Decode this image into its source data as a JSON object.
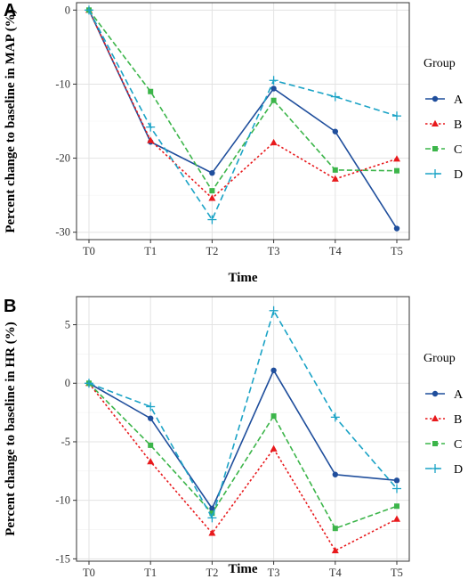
{
  "chart_data": [
    {
      "panel": "A",
      "type": "line",
      "xlabel": "Time",
      "ylabel": "Percent change to baseline in MAP (%)",
      "categories": [
        "T0",
        "T1",
        "T2",
        "T3",
        "T4",
        "T5"
      ],
      "yticks": [
        0,
        -10,
        -20,
        -30
      ],
      "ylim": [
        -31,
        1
      ],
      "grid": true,
      "legend": {
        "title": "Group",
        "position": "right"
      },
      "series": [
        {
          "name": "A",
          "color": "#1f4e9c",
          "marker": "circle",
          "dash": "solid",
          "values": [
            0,
            -17.8,
            -22.0,
            -10.6,
            -16.4,
            -29.5
          ]
        },
        {
          "name": "B",
          "color": "#e8191c",
          "marker": "triangle",
          "dash": "dotted",
          "values": [
            0,
            -17.6,
            -25.4,
            -17.9,
            -22.8,
            -20.1
          ]
        },
        {
          "name": "C",
          "color": "#3cb54a",
          "marker": "square",
          "dash": "dashed",
          "values": [
            0,
            -11.0,
            -24.4,
            -12.2,
            -21.6,
            -21.7
          ]
        },
        {
          "name": "D",
          "color": "#1ba3c6",
          "marker": "plus",
          "dash": "longdash",
          "values": [
            0,
            -15.8,
            -28.3,
            -9.5,
            -11.7,
            -14.3
          ]
        }
      ]
    },
    {
      "panel": "B",
      "type": "line",
      "xlabel": "Time",
      "ylabel": "Percent change to baseline in HR (%)",
      "categories": [
        "T0",
        "T1",
        "T2",
        "T3",
        "T4",
        "T5"
      ],
      "yticks": [
        5,
        0,
        -5,
        -10,
        -15
      ],
      "ylim": [
        -15.2,
        7.4
      ],
      "grid": true,
      "legend": {
        "title": "Group",
        "position": "right"
      },
      "series": [
        {
          "name": "A",
          "color": "#1f4e9c",
          "marker": "circle",
          "dash": "solid",
          "values": [
            0,
            -3.0,
            -10.7,
            1.1,
            -7.8,
            -8.3
          ]
        },
        {
          "name": "B",
          "color": "#e8191c",
          "marker": "triangle",
          "dash": "dotted",
          "values": [
            0,
            -6.7,
            -12.8,
            -5.6,
            -14.3,
            -11.6
          ]
        },
        {
          "name": "C",
          "color": "#3cb54a",
          "marker": "square",
          "dash": "dashed",
          "values": [
            0,
            -5.3,
            -11.1,
            -2.8,
            -12.4,
            -10.5
          ]
        },
        {
          "name": "D",
          "color": "#1ba3c6",
          "marker": "plus",
          "dash": "longdash",
          "values": [
            0,
            -2.0,
            -11.5,
            6.2,
            -2.9,
            -9.0
          ]
        }
      ]
    }
  ]
}
